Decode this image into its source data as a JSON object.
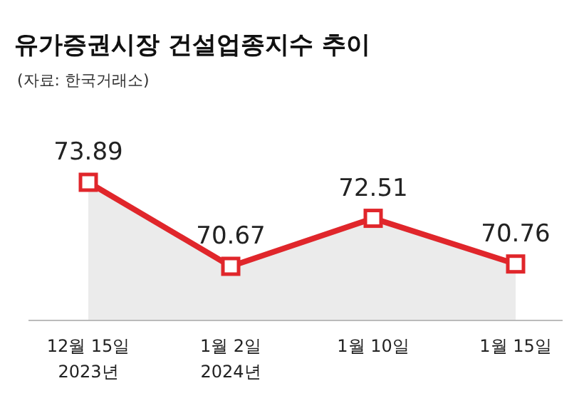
{
  "chart_data": {
    "type": "area",
    "title": "유가증권시장 건설업종지수 추이",
    "subtitle": "(자료: 한국거래소)",
    "categories": [
      "12월 15일\n2023년",
      "1월 2일\n2024년",
      "1월 10일",
      "1월 15일"
    ],
    "series": [
      {
        "color": "#e0262b",
        "values": [
          73.89,
          70.67,
          72.51,
          70.76
        ]
      }
    ],
    "marker": "square",
    "data_labels": true
  }
}
